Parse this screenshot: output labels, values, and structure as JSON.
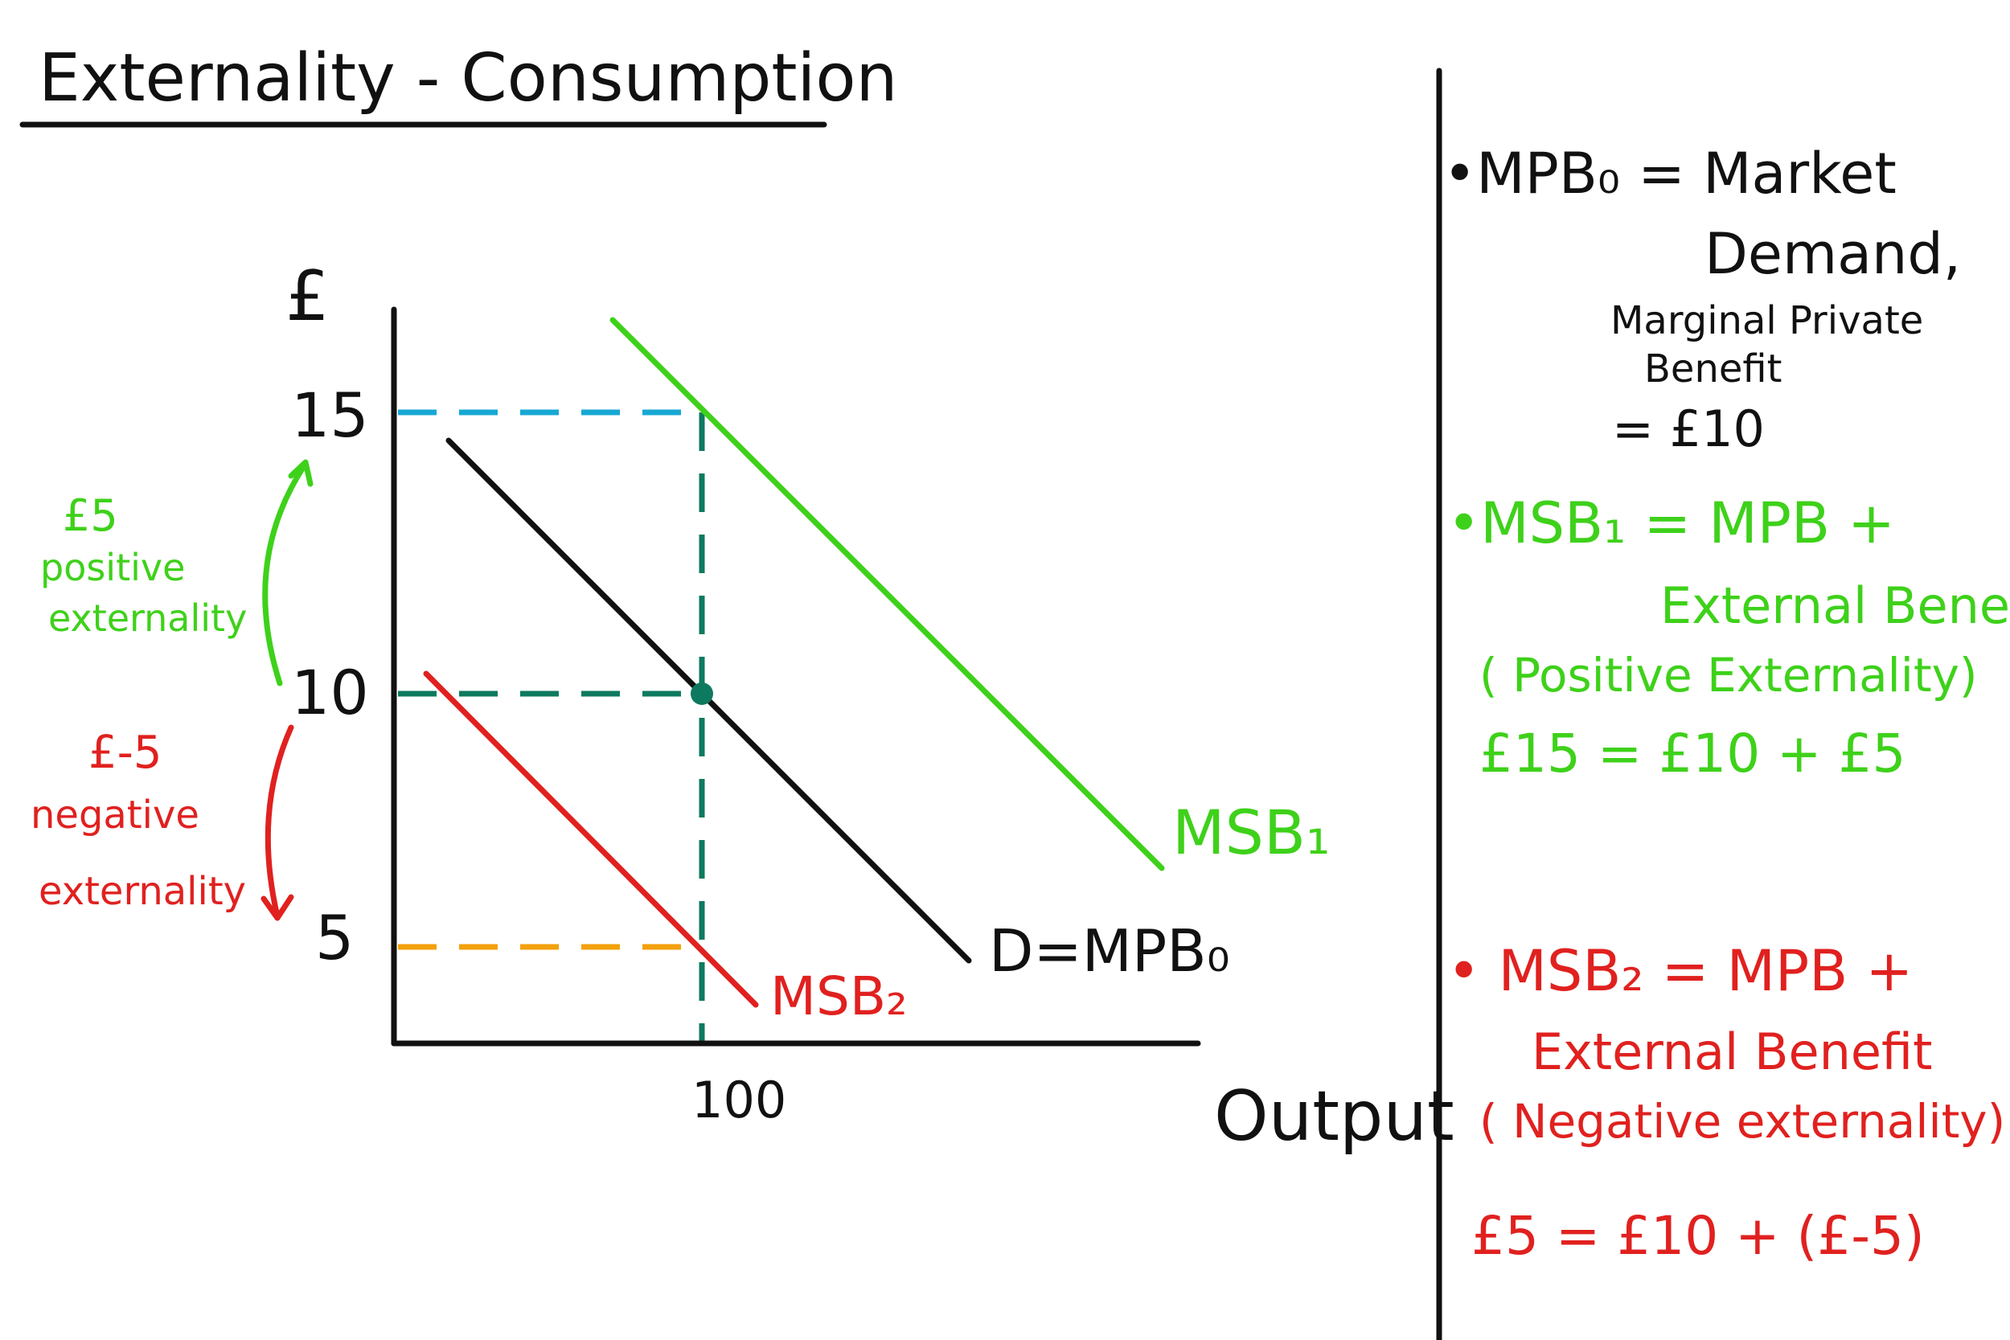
{
  "title": "Externality - Consumption",
  "colors": {
    "ink": "#111111",
    "green": "#3ed11a",
    "red": "#e0211f",
    "blue_dash": "#17a8d4",
    "teal_dash": "#0d7a5f",
    "orange_dash": "#f3a10c"
  },
  "diagram": {
    "y_axis_label": "£",
    "x_axis_label": "Output",
    "y_ticks": [
      "15",
      "10",
      "5"
    ],
    "x_tick": "100",
    "curves": {
      "msb1": "MSB₁",
      "demand": "D=MPB₀",
      "msb2": "MSB₂"
    },
    "positive_note": [
      "£5",
      "positive",
      "externality"
    ],
    "negative_note": [
      "£-5",
      "negative",
      "externality"
    ]
  },
  "notes": {
    "mpb": {
      "line1": "•MPB₀ = Market",
      "line2": "Demand,",
      "line3": "Marginal Private",
      "line4": "Benefit",
      "line5": "= £10"
    },
    "msb1": {
      "line1": "•MSB₁ =  MPB +",
      "line2": "External Benefit",
      "line3": "( Positive  Externality)",
      "line4": "£15   = £10 + £5"
    },
    "msb2": {
      "line1": "• MSB₂ =  MPB +",
      "line2": "External Benefit",
      "line3": "( Negative externality)",
      "line4": "£5  = £10 + (£-5)"
    }
  }
}
